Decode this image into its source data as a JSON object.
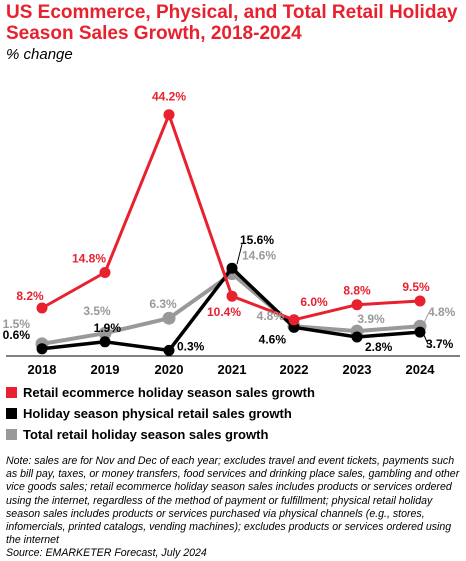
{
  "header": {
    "title": "US Ecommerce, Physical, and Total Retail Holiday Season Sales Growth, 2018-2024",
    "subtitle": "% change"
  },
  "chart_data": {
    "type": "line",
    "title": "US Ecommerce, Physical, and Total Retail Holiday Season Sales Growth, 2018-2024",
    "subtitle": "% change",
    "categories": [
      "2018",
      "2019",
      "2020",
      "2021",
      "2022",
      "2023",
      "2024"
    ],
    "ylim": [
      0,
      46
    ],
    "grid": false,
    "legend_position": "bottom",
    "series": [
      {
        "name": "Retail ecommerce holiday season sales growth",
        "color": "#e8212e",
        "values": [
          8.2,
          14.8,
          44.2,
          10.4,
          6.0,
          8.8,
          9.5
        ],
        "labels": [
          "8.2%",
          "14.8%",
          "44.2%",
          "10.4%",
          "6.0%",
          "8.8%",
          "9.5%"
        ]
      },
      {
        "name": "Holiday season physical retail sales growth",
        "color": "#000000",
        "values": [
          0.6,
          1.9,
          0.3,
          15.6,
          4.6,
          2.8,
          3.7
        ],
        "labels": [
          "0.6%",
          "1.9%",
          "0.3%",
          "15.6%",
          "4.6%",
          "2.8%",
          "3.7%"
        ]
      },
      {
        "name": "Total retail holiday season sales growth",
        "color": "#999999",
        "values": [
          1.5,
          3.5,
          6.3,
          14.6,
          4.8,
          3.9,
          4.8
        ],
        "labels": [
          "1.5%",
          "3.5%",
          "6.3%",
          "14.6%",
          "4.8%",
          "3.9%",
          "4.8%"
        ]
      }
    ]
  },
  "footer": {
    "note": "Note: sales are for Nov and Dec of each year; excludes travel and event tickets, payments such as bill pay, taxes, or money transfers, food services and drinking place sales, gambling and other vice goods sales; retail ecommerce holiday season sales includes products or services ordered using the internet, regardless of the method of payment or fulfillment; physical retail holiday season sales includes products or services purchased via physical channels (e.g., stores, infomercials, printed catalogs, vending machines); excludes products or services ordered using the internet",
    "source": "Source: EMARKETER Forecast, July 2024"
  }
}
